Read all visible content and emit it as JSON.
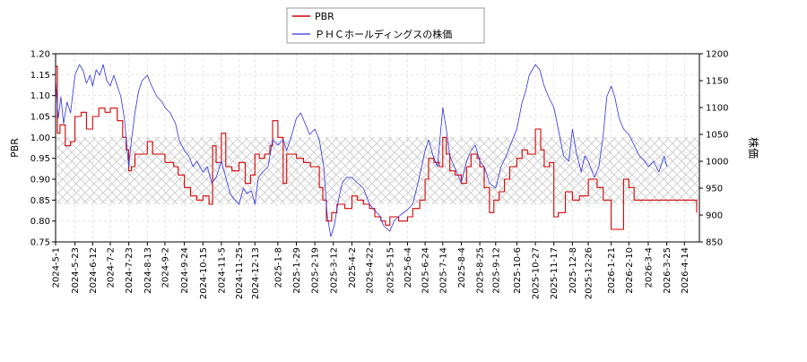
{
  "chart_data": {
    "type": "line",
    "legend": {
      "placement": "top-center",
      "entries": [
        {
          "label": "PBR",
          "color": "#d40000"
        },
        {
          "label": "ＰＨＣホールディングスの株価",
          "color": "#3030e0"
        }
      ]
    },
    "y_left": {
      "label": "PBR",
      "ylim": [
        0.75,
        1.2
      ],
      "ticks": [
        "0.75",
        "0.80",
        "0.85",
        "0.90",
        "0.95",
        "1.00",
        "1.05",
        "1.10",
        "1.15",
        "1.20"
      ]
    },
    "y_right": {
      "label": "株価",
      "ylim": [
        850,
        1200
      ],
      "ticks": [
        "850",
        "900",
        "950",
        "1000",
        "1050",
        "1100",
        "1150",
        "1200"
      ]
    },
    "x": {
      "type": "date",
      "range": [
        "2024-05-01",
        "2026-05-01"
      ],
      "ticks": [
        "2024-5-1",
        "2024-5-23",
        "2024-6-12",
        "2024-7-2",
        "2024-7-23",
        "2024-8-13",
        "2024-9-2",
        "2024-9-24",
        "2024-10-15",
        "2024-11-5",
        "2024-11-25",
        "2024-12-13",
        "2025-1-8",
        "2025-1-29",
        "2025-2-19",
        "2025-3-12",
        "2025-4-2",
        "2025-4-22",
        "2025-5-15",
        "2025-6-4",
        "2025-6-24",
        "2025-7-14",
        "2025-8-4",
        "2025-8-25",
        "2025-9-12",
        "2025-10-6",
        "2025-10-27",
        "2025-11-17",
        "2025-12-8",
        "2025-12-26",
        "2026-1-21",
        "2026-2-10",
        "2026-3-4",
        "2026-3-25",
        "2026-4-14"
      ]
    },
    "band": {
      "from": 0.84,
      "to": 1.0,
      "pattern": "crosshatch"
    },
    "grid": true,
    "series": [
      {
        "name": "PBR",
        "axis": "left",
        "color": "#d40000",
        "step": true,
        "points": [
          [
            "2024-05-01",
            1.17
          ],
          [
            "2024-05-03",
            1.01
          ],
          [
            "2024-05-06",
            1.03
          ],
          [
            "2024-05-12",
            0.98
          ],
          [
            "2024-05-18",
            0.99
          ],
          [
            "2024-05-23",
            1.05
          ],
          [
            "2024-05-30",
            1.06
          ],
          [
            "2024-06-05",
            1.02
          ],
          [
            "2024-06-12",
            1.05
          ],
          [
            "2024-06-19",
            1.07
          ],
          [
            "2024-06-26",
            1.06
          ],
          [
            "2024-07-02",
            1.07
          ],
          [
            "2024-07-10",
            1.04
          ],
          [
            "2024-07-16",
            1.0
          ],
          [
            "2024-07-20",
            0.97
          ],
          [
            "2024-07-23",
            0.92
          ],
          [
            "2024-07-26",
            0.93
          ],
          [
            "2024-07-30",
            0.96
          ],
          [
            "2024-08-05",
            0.96
          ],
          [
            "2024-08-13",
            0.99
          ],
          [
            "2024-08-19",
            0.96
          ],
          [
            "2024-08-26",
            0.96
          ],
          [
            "2024-09-02",
            0.94
          ],
          [
            "2024-09-12",
            0.93
          ],
          [
            "2024-09-17",
            0.91
          ],
          [
            "2024-09-24",
            0.88
          ],
          [
            "2024-10-01",
            0.86
          ],
          [
            "2024-10-08",
            0.85
          ],
          [
            "2024-10-15",
            0.86
          ],
          [
            "2024-10-22",
            0.84
          ],
          [
            "2024-10-26",
            0.98
          ],
          [
            "2024-10-30",
            0.94
          ],
          [
            "2024-11-05",
            1.01
          ],
          [
            "2024-11-10",
            0.93
          ],
          [
            "2024-11-17",
            0.92
          ],
          [
            "2024-11-25",
            0.94
          ],
          [
            "2024-12-02",
            0.89
          ],
          [
            "2024-12-08",
            0.91
          ],
          [
            "2024-12-13",
            0.96
          ],
          [
            "2024-12-18",
            0.95
          ],
          [
            "2024-12-24",
            0.96
          ],
          [
            "2024-12-30",
            0.98
          ],
          [
            "2025-01-02",
            1.04
          ],
          [
            "2025-01-08",
            1.0
          ],
          [
            "2025-01-14",
            0.89
          ],
          [
            "2025-01-18",
            0.96
          ],
          [
            "2025-01-29",
            0.95
          ],
          [
            "2025-02-06",
            0.94
          ],
          [
            "2025-02-14",
            0.93
          ],
          [
            "2025-02-24",
            0.88
          ],
          [
            "2025-02-28",
            0.85
          ],
          [
            "2025-03-04",
            0.8
          ],
          [
            "2025-03-10",
            0.82
          ],
          [
            "2025-03-16",
            0.84
          ],
          [
            "2025-03-25",
            0.83
          ],
          [
            "2025-04-02",
            0.86
          ],
          [
            "2025-04-08",
            0.85
          ],
          [
            "2025-04-15",
            0.84
          ],
          [
            "2025-04-22",
            0.83
          ],
          [
            "2025-04-28",
            0.81
          ],
          [
            "2025-05-05",
            0.8
          ],
          [
            "2025-05-10",
            0.79
          ],
          [
            "2025-05-15",
            0.81
          ],
          [
            "2025-05-25",
            0.8
          ],
          [
            "2025-06-04",
            0.81
          ],
          [
            "2025-06-10",
            0.83
          ],
          [
            "2025-06-18",
            0.85
          ],
          [
            "2025-06-24",
            0.9
          ],
          [
            "2025-06-28",
            0.95
          ],
          [
            "2025-07-04",
            0.94
          ],
          [
            "2025-07-10",
            0.93
          ],
          [
            "2025-07-14",
            1.0
          ],
          [
            "2025-07-18",
            0.96
          ],
          [
            "2025-07-22",
            0.92
          ],
          [
            "2025-07-28",
            0.91
          ],
          [
            "2025-08-04",
            0.89
          ],
          [
            "2025-08-10",
            0.93
          ],
          [
            "2025-08-15",
            0.96
          ],
          [
            "2025-08-22",
            0.95
          ],
          [
            "2025-08-25",
            0.93
          ],
          [
            "2025-08-30",
            0.88
          ],
          [
            "2025-09-05",
            0.82
          ],
          [
            "2025-09-10",
            0.85
          ],
          [
            "2025-09-16",
            0.87
          ],
          [
            "2025-09-22",
            0.9
          ],
          [
            "2025-09-28",
            0.93
          ],
          [
            "2025-10-06",
            0.95
          ],
          [
            "2025-10-12",
            0.97
          ],
          [
            "2025-10-18",
            0.96
          ],
          [
            "2025-10-27",
            1.02
          ],
          [
            "2025-11-02",
            0.97
          ],
          [
            "2025-11-06",
            0.93
          ],
          [
            "2025-11-12",
            0.94
          ],
          [
            "2025-11-17",
            0.81
          ],
          [
            "2025-11-22",
            0.82
          ],
          [
            "2025-11-30",
            0.87
          ],
          [
            "2025-12-08",
            0.85
          ],
          [
            "2025-12-16",
            0.86
          ],
          [
            "2025-12-26",
            0.9
          ],
          [
            "2026-01-05",
            0.88
          ],
          [
            "2026-01-12",
            0.85
          ],
          [
            "2026-01-21",
            0.78
          ],
          [
            "2026-01-28",
            0.78
          ],
          [
            "2026-02-04",
            0.9
          ],
          [
            "2026-02-10",
            0.88
          ],
          [
            "2026-02-16",
            0.85
          ],
          [
            "2026-03-04",
            0.85
          ],
          [
            "2026-03-25",
            0.85
          ],
          [
            "2026-04-14",
            0.85
          ],
          [
            "2026-04-28",
            0.82
          ]
        ]
      },
      {
        "name": "ＰＨＣホールディングスの株価",
        "axis": "right",
        "color": "#3030e0",
        "step": false,
        "points": [
          [
            "2024-05-01",
            1150
          ],
          [
            "2024-05-04",
            1080
          ],
          [
            "2024-05-07",
            1120
          ],
          [
            "2024-05-10",
            1070
          ],
          [
            "2024-05-14",
            1110
          ],
          [
            "2024-05-18",
            1090
          ],
          [
            "2024-05-23",
            1160
          ],
          [
            "2024-05-28",
            1180
          ],
          [
            "2024-06-01",
            1170
          ],
          [
            "2024-06-05",
            1145
          ],
          [
            "2024-06-09",
            1160
          ],
          [
            "2024-06-12",
            1140
          ],
          [
            "2024-06-16",
            1170
          ],
          [
            "2024-06-20",
            1160
          ],
          [
            "2024-06-24",
            1180
          ],
          [
            "2024-06-28",
            1150
          ],
          [
            "2024-07-02",
            1140
          ],
          [
            "2024-07-06",
            1160
          ],
          [
            "2024-07-10",
            1140
          ],
          [
            "2024-07-14",
            1120
          ],
          [
            "2024-07-18",
            1080
          ],
          [
            "2024-07-23",
            990
          ],
          [
            "2024-07-26",
            1040
          ],
          [
            "2024-07-30",
            1090
          ],
          [
            "2024-08-03",
            1130
          ],
          [
            "2024-08-07",
            1150
          ],
          [
            "2024-08-13",
            1160
          ],
          [
            "2024-08-18",
            1140
          ],
          [
            "2024-08-24",
            1120
          ],
          [
            "2024-08-30",
            1110
          ],
          [
            "2024-09-02",
            1100
          ],
          [
            "2024-09-08",
            1090
          ],
          [
            "2024-09-14",
            1070
          ],
          [
            "2024-09-18",
            1040
          ],
          [
            "2024-09-24",
            1020
          ],
          [
            "2024-09-29",
            1010
          ],
          [
            "2024-10-04",
            990
          ],
          [
            "2024-10-08",
            1000
          ],
          [
            "2024-10-15",
            980
          ],
          [
            "2024-10-20",
            990
          ],
          [
            "2024-10-25",
            960
          ],
          [
            "2024-10-30",
            970
          ],
          [
            "2024-11-05",
            1000
          ],
          [
            "2024-11-10",
            970
          ],
          [
            "2024-11-15",
            940
          ],
          [
            "2024-11-19",
            930
          ],
          [
            "2024-11-25",
            920
          ],
          [
            "2024-11-30",
            950
          ],
          [
            "2024-12-04",
            940
          ],
          [
            "2024-12-09",
            945
          ],
          [
            "2024-12-13",
            920
          ],
          [
            "2024-12-17",
            970
          ],
          [
            "2024-12-22",
            980
          ],
          [
            "2024-12-28",
            990
          ],
          [
            "2025-01-02",
            1040
          ],
          [
            "2025-01-08",
            1030
          ],
          [
            "2025-01-14",
            1040
          ],
          [
            "2025-01-18",
            1020
          ],
          [
            "2025-01-24",
            1050
          ],
          [
            "2025-01-29",
            1080
          ],
          [
            "2025-02-03",
            1090
          ],
          [
            "2025-02-08",
            1070
          ],
          [
            "2025-02-13",
            1050
          ],
          [
            "2025-02-19",
            1060
          ],
          [
            "2025-02-24",
            1040
          ],
          [
            "2025-03-01",
            990
          ],
          [
            "2025-03-05",
            900
          ],
          [
            "2025-03-09",
            860
          ],
          [
            "2025-03-13",
            880
          ],
          [
            "2025-03-18",
            930
          ],
          [
            "2025-03-22",
            960
          ],
          [
            "2025-03-27",
            970
          ],
          [
            "2025-04-02",
            970
          ],
          [
            "2025-04-08",
            960
          ],
          [
            "2025-04-15",
            950
          ],
          [
            "2025-04-22",
            920
          ],
          [
            "2025-04-27",
            910
          ],
          [
            "2025-05-03",
            900
          ],
          [
            "2025-05-08",
            880
          ],
          [
            "2025-05-15",
            870
          ],
          [
            "2025-05-20",
            890
          ],
          [
            "2025-05-27",
            900
          ],
          [
            "2025-06-04",
            910
          ],
          [
            "2025-06-10",
            920
          ],
          [
            "2025-06-16",
            960
          ],
          [
            "2025-06-20",
            990
          ],
          [
            "2025-06-24",
            1020
          ],
          [
            "2025-06-28",
            1040
          ],
          [
            "2025-07-03",
            1010
          ],
          [
            "2025-07-08",
            990
          ],
          [
            "2025-07-14",
            1100
          ],
          [
            "2025-07-18",
            1060
          ],
          [
            "2025-07-22",
            1010
          ],
          [
            "2025-07-27",
            990
          ],
          [
            "2025-08-04",
            960
          ],
          [
            "2025-08-10",
            1000
          ],
          [
            "2025-08-15",
            1020
          ],
          [
            "2025-08-20",
            1030
          ],
          [
            "2025-08-25",
            1000
          ],
          [
            "2025-08-30",
            990
          ],
          [
            "2025-09-05",
            960
          ],
          [
            "2025-09-12",
            950
          ],
          [
            "2025-09-18",
            990
          ],
          [
            "2025-09-24",
            1010
          ],
          [
            "2025-10-01",
            1040
          ],
          [
            "2025-10-06",
            1060
          ],
          [
            "2025-10-12",
            1110
          ],
          [
            "2025-10-16",
            1130
          ],
          [
            "2025-10-20",
            1160
          ],
          [
            "2025-10-27",
            1180
          ],
          [
            "2025-11-01",
            1170
          ],
          [
            "2025-11-06",
            1140
          ],
          [
            "2025-11-11",
            1120
          ],
          [
            "2025-11-17",
            1100
          ],
          [
            "2025-11-22",
            1060
          ],
          [
            "2025-11-28",
            1010
          ],
          [
            "2025-12-04",
            1000
          ],
          [
            "2025-12-08",
            1060
          ],
          [
            "2025-12-12",
            1020
          ],
          [
            "2025-12-18",
            980
          ],
          [
            "2025-12-22",
            1010
          ],
          [
            "2025-12-26",
            1000
          ],
          [
            "2026-01-02",
            970
          ],
          [
            "2026-01-07",
            990
          ],
          [
            "2026-01-12",
            1050
          ],
          [
            "2026-01-16",
            1120
          ],
          [
            "2026-01-21",
            1140
          ],
          [
            "2026-01-25",
            1120
          ],
          [
            "2026-01-30",
            1080
          ],
          [
            "2026-02-04",
            1060
          ],
          [
            "2026-02-10",
            1050
          ],
          [
            "2026-02-16",
            1030
          ],
          [
            "2026-02-22",
            1010
          ],
          [
            "2026-02-28",
            1000
          ],
          [
            "2026-03-04",
            990
          ],
          [
            "2026-03-10",
            1000
          ],
          [
            "2026-03-16",
            980
          ],
          [
            "2026-03-22",
            1010
          ],
          [
            "2026-03-25",
            990
          ]
        ]
      }
    ]
  }
}
